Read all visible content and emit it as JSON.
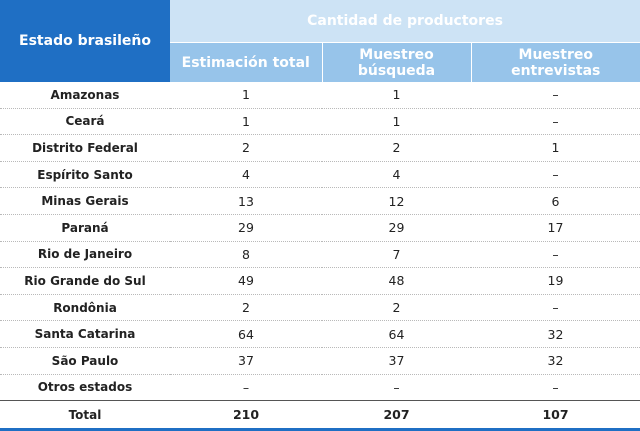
{
  "table": {
    "header": {
      "state_label": "Estado brasileño",
      "group_label": "Cantidad de productores",
      "columns": [
        "Estimación total",
        "Muestreo búsqueda",
        "Muestreo entrevistas"
      ]
    },
    "rows": [
      {
        "state": "Amazonas",
        "values": [
          "1",
          "1",
          "–"
        ]
      },
      {
        "state": "Ceará",
        "values": [
          "1",
          "1",
          "–"
        ]
      },
      {
        "state": "Distrito Federal",
        "values": [
          "2",
          "2",
          "1"
        ]
      },
      {
        "state": "Espírito Santo",
        "values": [
          "4",
          "4",
          "–"
        ]
      },
      {
        "state": "Minas Gerais",
        "values": [
          "13",
          "12",
          "6"
        ]
      },
      {
        "state": "Paraná",
        "values": [
          "29",
          "29",
          "17"
        ]
      },
      {
        "state": "Rio de Janeiro",
        "values": [
          "8",
          "7",
          "–"
        ]
      },
      {
        "state": "Rio Grande do Sul",
        "values": [
          "49",
          "48",
          "19"
        ]
      },
      {
        "state": "Rondônia",
        "values": [
          "2",
          "2",
          "–"
        ]
      },
      {
        "state": "Santa Catarina",
        "values": [
          "64",
          "64",
          "32"
        ]
      },
      {
        "state": "São Paulo",
        "values": [
          "37",
          "37",
          "32"
        ]
      },
      {
        "state": "Otros estados",
        "values": [
          "–",
          "–",
          "–"
        ]
      }
    ],
    "total": {
      "label": "Total",
      "values": [
        "210",
        "207",
        "107"
      ]
    }
  },
  "colors": {
    "header_dark": "#1f6fc4",
    "header_light": "#cde3f5",
    "header_mid": "#97c4ea"
  }
}
